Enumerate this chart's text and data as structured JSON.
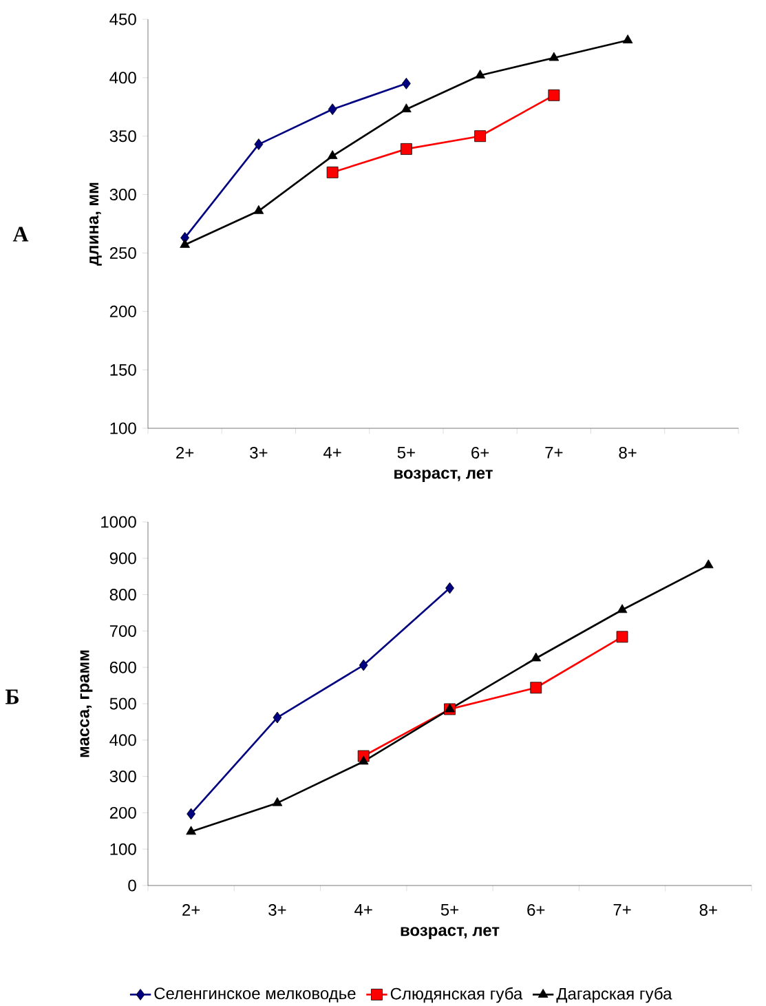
{
  "chart_data": [
    {
      "type": "line",
      "ylabel": "длина, мм",
      "xlabel": "возраст, лет",
      "annotations": [
        "А"
      ],
      "categories": [
        "2+",
        "3+",
        "4+",
        "5+",
        "6+",
        "7+",
        "8+",
        null
      ],
      "ylim": [
        100,
        450
      ],
      "yticks": [
        100,
        150,
        200,
        250,
        300,
        350,
        400,
        450
      ],
      "grid": false,
      "legend": false,
      "series": [
        {
          "color": "#000080",
          "marker": "diamond",
          "values": [
            263,
            343,
            373,
            395,
            null,
            null,
            null,
            null
          ]
        },
        {
          "color": "#ff0000",
          "marker": "square",
          "values": [
            null,
            null,
            319,
            339,
            350,
            385,
            null,
            null
          ]
        },
        {
          "color": "#000000",
          "marker": "triangle",
          "values": [
            257,
            286,
            333,
            373,
            402,
            417,
            432,
            null
          ]
        }
      ]
    },
    {
      "type": "line",
      "ylabel": "масса, грамм",
      "xlabel": "возраст, лет",
      "annotations": [
        "Б"
      ],
      "categories": [
        "2+",
        "3+",
        "4+",
        "5+",
        "6+",
        "7+",
        "8+"
      ],
      "ylim": [
        0,
        1000
      ],
      "yticks": [
        0,
        100,
        200,
        300,
        400,
        500,
        600,
        700,
        800,
        900,
        1000
      ],
      "grid": false,
      "legend": "bottom",
      "series": [
        {
          "name": "Селенгинское мелководье",
          "color": "#000080",
          "marker": "diamond",
          "values": [
            197,
            462,
            606,
            818,
            null,
            null,
            null
          ]
        },
        {
          "name": "Слюдянская губа",
          "color": "#ff0000",
          "marker": "square",
          "values": [
            null,
            null,
            356,
            485,
            544,
            684,
            null
          ]
        },
        {
          "name": "Дагарская губа",
          "color": "#000000",
          "marker": "triangle",
          "values": [
            148,
            227,
            341,
            485,
            625,
            758,
            881
          ]
        }
      ]
    }
  ]
}
